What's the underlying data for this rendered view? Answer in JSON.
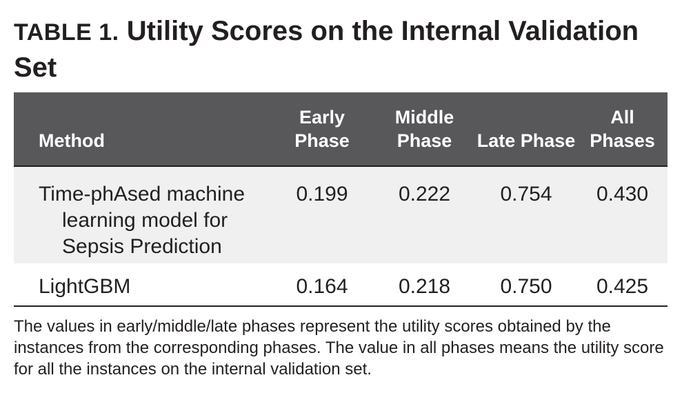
{
  "title": {
    "label": "TABLE 1.",
    "text": "Utility Scores on the Internal Validation Set"
  },
  "table": {
    "headers": [
      "Method",
      "Early Phase",
      "Middle Phase",
      "Late Phase",
      "All Phases"
    ],
    "rows": [
      {
        "method": "Time-phAsed machine learning model for Sepsis Prediction",
        "early": "0.199",
        "middle": "0.222",
        "late": "0.754",
        "all": "0.430"
      },
      {
        "method": "LightGBM",
        "early": "0.164",
        "middle": "0.218",
        "late": "0.750",
        "all": "0.425"
      }
    ]
  },
  "footnote": "The values in early/middle/late phases represent the utility scores obtained by the instances from the corresponding phases. The value in all phases means the utility score for all the instances on the internal validation set."
}
